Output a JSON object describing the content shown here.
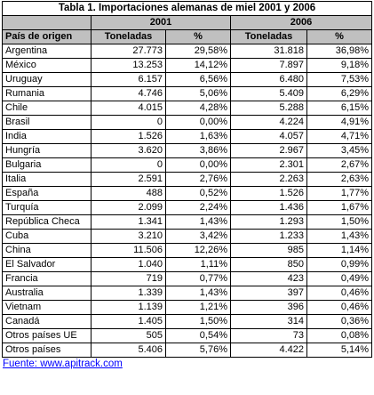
{
  "title": "Tabla 1. Importaciones alemanas de miel 2001 y 2006",
  "years": [
    "2001",
    "2006"
  ],
  "origin_header": "País de origen",
  "col_tonnes": "Toneladas",
  "col_pct": "%",
  "rows": [
    {
      "country": "Argentina",
      "t2001": "27.773",
      "p2001": "29,58%",
      "t2006": "31.818",
      "p2006": "36,98%"
    },
    {
      "country": "México",
      "t2001": "13.253",
      "p2001": "14,12%",
      "t2006": "7.897",
      "p2006": "9,18%"
    },
    {
      "country": "Uruguay",
      "t2001": "6.157",
      "p2001": "6,56%",
      "t2006": "6.480",
      "p2006": "7,53%"
    },
    {
      "country": "Rumania",
      "t2001": "4.746",
      "p2001": "5,06%",
      "t2006": "5.409",
      "p2006": "6,29%"
    },
    {
      "country": "Chile",
      "t2001": "4.015",
      "p2001": "4,28%",
      "t2006": "5.288",
      "p2006": "6,15%"
    },
    {
      "country": "Brasil",
      "t2001": "0",
      "p2001": "0,00%",
      "t2006": "4.224",
      "p2006": "4,91%"
    },
    {
      "country": "India",
      "t2001": "1.526",
      "p2001": "1,63%",
      "t2006": "4.057",
      "p2006": "4,71%"
    },
    {
      "country": "Hungría",
      "t2001": "3.620",
      "p2001": "3,86%",
      "t2006": "2.967",
      "p2006": "3,45%"
    },
    {
      "country": "Bulgaria",
      "t2001": "0",
      "p2001": "0,00%",
      "t2006": "2.301",
      "p2006": "2,67%"
    },
    {
      "country": "Italia",
      "t2001": "2.591",
      "p2001": "2,76%",
      "t2006": "2.263",
      "p2006": "2,63%"
    },
    {
      "country": "España",
      "t2001": "488",
      "p2001": "0,52%",
      "t2006": "1.526",
      "p2006": "1,77%"
    },
    {
      "country": "Turquía",
      "t2001": "2.099",
      "p2001": "2,24%",
      "t2006": "1.436",
      "p2006": "1,67%"
    },
    {
      "country": "República Checa",
      "t2001": "1.341",
      "p2001": "1,43%",
      "t2006": "1.293",
      "p2006": "1,50%"
    },
    {
      "country": "Cuba",
      "t2001": "3.210",
      "p2001": "3,42%",
      "t2006": "1.233",
      "p2006": "1,43%"
    },
    {
      "country": "China",
      "t2001": "11.506",
      "p2001": "12,26%",
      "t2006": "985",
      "p2006": "1,14%"
    },
    {
      "country": "El Salvador",
      "t2001": "1.040",
      "p2001": "1,11%",
      "t2006": "850",
      "p2006": "0,99%"
    },
    {
      "country": "Francia",
      "t2001": "719",
      "p2001": "0,77%",
      "t2006": "423",
      "p2006": "0,49%"
    },
    {
      "country": "Australia",
      "t2001": "1.339",
      "p2001": "1,43%",
      "t2006": "397",
      "p2006": "0,46%"
    },
    {
      "country": "Vietnam",
      "t2001": "1.139",
      "p2001": "1,21%",
      "t2006": "396",
      "p2006": "0,46%"
    },
    {
      "country": "Canadá",
      "t2001": "1.405",
      "p2001": "1,50%",
      "t2006": "314",
      "p2006": "0,36%"
    },
    {
      "country": "Otros países UE",
      "t2001": "505",
      "p2001": "0,54%",
      "t2006": "73",
      "p2006": "0,08%"
    },
    {
      "country": "Otros países",
      "t2001": "5.406",
      "p2001": "5,76%",
      "t2006": "4.422",
      "p2006": "5,14%"
    }
  ],
  "source": "Fuente: www.apitrack.com"
}
